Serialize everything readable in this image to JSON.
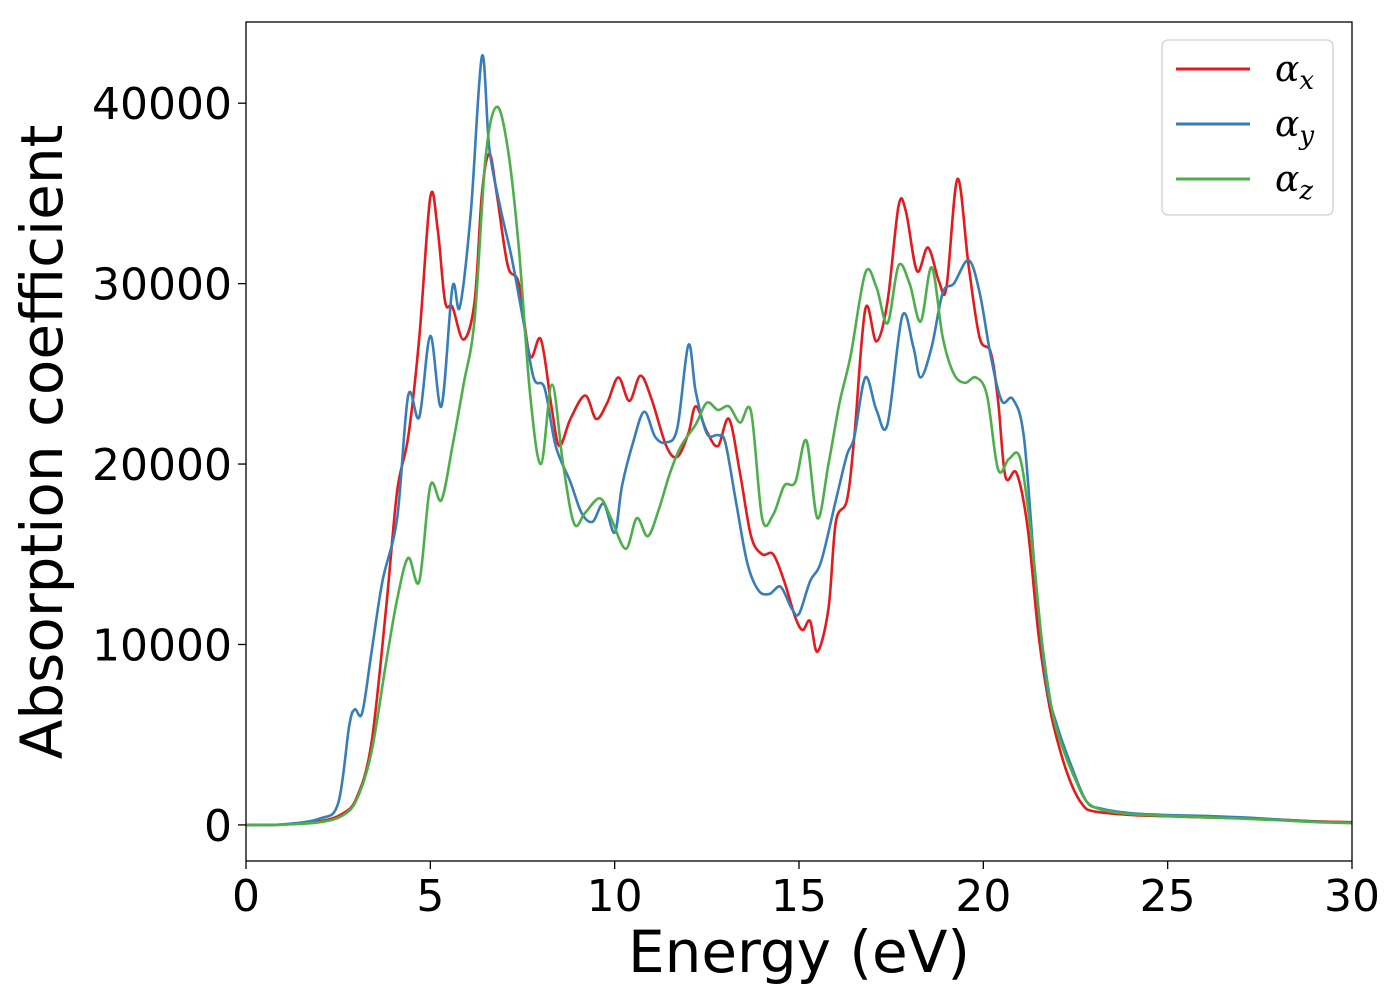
{
  "chart_data": {
    "type": "line",
    "title": "",
    "xlabel": "Energy (eV)",
    "ylabel": "Absorption coefficient",
    "xlim": [
      0,
      30
    ],
    "ylim": [
      -2000,
      44500
    ],
    "xticks": [
      0,
      5,
      10,
      15,
      20,
      25,
      30
    ],
    "yticks": [
      0,
      10000,
      20000,
      30000,
      40000
    ],
    "grid": false,
    "legend_position": "top-right",
    "series": [
      {
        "name": "α",
        "subscript": "x",
        "color": "#e41a1c",
        "points": [
          [
            0,
            0
          ],
          [
            1,
            20
          ],
          [
            2,
            200
          ],
          [
            2.6,
            600
          ],
          [
            3,
            1500
          ],
          [
            3.4,
            4500
          ],
          [
            3.8,
            12000
          ],
          [
            4.1,
            18500
          ],
          [
            4.4,
            21500
          ],
          [
            4.7,
            27000
          ],
          [
            5,
            34800
          ],
          [
            5.2,
            33000
          ],
          [
            5.4,
            29000
          ],
          [
            5.6,
            28700
          ],
          [
            5.9,
            26900
          ],
          [
            6.2,
            29000
          ],
          [
            6.4,
            35000
          ],
          [
            6.6,
            37200
          ],
          [
            6.8,
            35000
          ],
          [
            7.1,
            31000
          ],
          [
            7.4,
            30000
          ],
          [
            7.7,
            26000
          ],
          [
            8,
            26900
          ],
          [
            8.3,
            23000
          ],
          [
            8.5,
            21000
          ],
          [
            8.8,
            22500
          ],
          [
            9.2,
            23800
          ],
          [
            9.5,
            22500
          ],
          [
            9.8,
            23400
          ],
          [
            10.1,
            24800
          ],
          [
            10.4,
            23500
          ],
          [
            10.7,
            24900
          ],
          [
            11,
            23600
          ],
          [
            11.4,
            21000
          ],
          [
            11.7,
            20400
          ],
          [
            12,
            21700
          ],
          [
            12.2,
            23200
          ],
          [
            12.5,
            21800
          ],
          [
            12.8,
            21000
          ],
          [
            13.1,
            22500
          ],
          [
            13.4,
            19500
          ],
          [
            13.7,
            16000
          ],
          [
            14,
            15000
          ],
          [
            14.3,
            15000
          ],
          [
            14.6,
            13500
          ],
          [
            14.9,
            11500
          ],
          [
            15.1,
            10800
          ],
          [
            15.3,
            11300
          ],
          [
            15.5,
            9600
          ],
          [
            15.8,
            12000
          ],
          [
            16,
            16800
          ],
          [
            16.3,
            18000
          ],
          [
            16.5,
            21500
          ],
          [
            16.8,
            28600
          ],
          [
            17.1,
            26800
          ],
          [
            17.4,
            29000
          ],
          [
            17.7,
            34300
          ],
          [
            17.9,
            34000
          ],
          [
            18.2,
            30700
          ],
          [
            18.5,
            32000
          ],
          [
            18.8,
            30100
          ],
          [
            19.0,
            29800
          ],
          [
            19.3,
            35800
          ],
          [
            19.6,
            31000
          ],
          [
            19.9,
            27000
          ],
          [
            20.2,
            26200
          ],
          [
            20.4,
            23500
          ],
          [
            20.6,
            19300
          ],
          [
            20.9,
            19500
          ],
          [
            21.2,
            16500
          ],
          [
            21.5,
            10500
          ],
          [
            21.8,
            6500
          ],
          [
            22.1,
            4000
          ],
          [
            22.4,
            2200
          ],
          [
            22.7,
            1100
          ],
          [
            23,
            750
          ],
          [
            24,
            550
          ],
          [
            25,
            480
          ],
          [
            26,
            420
          ],
          [
            27,
            380
          ],
          [
            28,
            300
          ],
          [
            29,
            200
          ],
          [
            30,
            150
          ]
        ]
      },
      {
        "name": "α",
        "subscript": "y",
        "color": "#377eb8",
        "points": [
          [
            0,
            0
          ],
          [
            1,
            30
          ],
          [
            2,
            350
          ],
          [
            2.5,
            1200
          ],
          [
            2.8,
            5500
          ],
          [
            2.95,
            6400
          ],
          [
            3.15,
            6200
          ],
          [
            3.4,
            9500
          ],
          [
            3.7,
            13500
          ],
          [
            4.1,
            17000
          ],
          [
            4.4,
            23800
          ],
          [
            4.7,
            22600
          ],
          [
            5,
            27100
          ],
          [
            5.3,
            23200
          ],
          [
            5.6,
            29800
          ],
          [
            5.8,
            28700
          ],
          [
            6.1,
            34000
          ],
          [
            6.4,
            42600
          ],
          [
            6.6,
            37500
          ],
          [
            6.9,
            34200
          ],
          [
            7.2,
            31500
          ],
          [
            7.5,
            28200
          ],
          [
            7.8,
            24800
          ],
          [
            8.1,
            24200
          ],
          [
            8.4,
            21000
          ],
          [
            8.8,
            19000
          ],
          [
            9.1,
            17300
          ],
          [
            9.4,
            16800
          ],
          [
            9.7,
            17800
          ],
          [
            10,
            16200
          ],
          [
            10.2,
            18800
          ],
          [
            10.5,
            21200
          ],
          [
            10.8,
            22900
          ],
          [
            11.1,
            21500
          ],
          [
            11.4,
            21200
          ],
          [
            11.7,
            22000
          ],
          [
            12,
            26600
          ],
          [
            12.2,
            24000
          ],
          [
            12.5,
            21700
          ],
          [
            12.8,
            21600
          ],
          [
            13,
            21200
          ],
          [
            13.3,
            17800
          ],
          [
            13.6,
            14500
          ],
          [
            13.9,
            13000
          ],
          [
            14.2,
            12800
          ],
          [
            14.5,
            13200
          ],
          [
            14.8,
            12000
          ],
          [
            15.0,
            11700
          ],
          [
            15.3,
            13500
          ],
          [
            15.6,
            14600
          ],
          [
            16,
            18000
          ],
          [
            16.3,
            20500
          ],
          [
            16.5,
            21500
          ],
          [
            16.8,
            24800
          ],
          [
            17.1,
            23000
          ],
          [
            17.4,
            22200
          ],
          [
            17.8,
            28200
          ],
          [
            18.1,
            26500
          ],
          [
            18.3,
            24800
          ],
          [
            18.6,
            26500
          ],
          [
            18.9,
            29500
          ],
          [
            19.2,
            30000
          ],
          [
            19.6,
            31300
          ],
          [
            19.9,
            29500
          ],
          [
            20.2,
            26000
          ],
          [
            20.5,
            23500
          ],
          [
            20.8,
            23600
          ],
          [
            21.1,
            21500
          ],
          [
            21.4,
            14000
          ],
          [
            21.7,
            8000
          ],
          [
            22,
            5500
          ],
          [
            22.4,
            3200
          ],
          [
            22.8,
            1300
          ],
          [
            23.2,
            900
          ],
          [
            24,
            650
          ],
          [
            25,
            550
          ],
          [
            26,
            500
          ],
          [
            27,
            420
          ],
          [
            28,
            300
          ],
          [
            29,
            180
          ],
          [
            30,
            120
          ]
        ]
      },
      {
        "name": "α",
        "subscript": "z",
        "color": "#4daf4a",
        "points": [
          [
            0,
            0
          ],
          [
            1,
            15
          ],
          [
            2,
            150
          ],
          [
            2.6,
            500
          ],
          [
            3,
            1400
          ],
          [
            3.4,
            4000
          ],
          [
            3.8,
            9000
          ],
          [
            4.1,
            12500
          ],
          [
            4.4,
            14800
          ],
          [
            4.7,
            13500
          ],
          [
            5,
            18800
          ],
          [
            5.3,
            18000
          ],
          [
            5.6,
            21000
          ],
          [
            5.9,
            24400
          ],
          [
            6.2,
            28000
          ],
          [
            6.5,
            37000
          ],
          [
            6.8,
            39800
          ],
          [
            7.1,
            37500
          ],
          [
            7.4,
            32000
          ],
          [
            7.7,
            24000
          ],
          [
            8,
            20000
          ],
          [
            8.3,
            24400
          ],
          [
            8.6,
            20000
          ],
          [
            8.9,
            16700
          ],
          [
            9.2,
            17300
          ],
          [
            9.6,
            18100
          ],
          [
            9.9,
            17000
          ],
          [
            10.3,
            15300
          ],
          [
            10.6,
            17000
          ],
          [
            10.9,
            16000
          ],
          [
            11.2,
            17500
          ],
          [
            11.5,
            19500
          ],
          [
            11.8,
            21000
          ],
          [
            12.2,
            22200
          ],
          [
            12.5,
            23400
          ],
          [
            12.8,
            23000
          ],
          [
            13.1,
            23200
          ],
          [
            13.4,
            22300
          ],
          [
            13.7,
            22900
          ],
          [
            14,
            17000
          ],
          [
            14.3,
            17200
          ],
          [
            14.6,
            18800
          ],
          [
            14.9,
            19000
          ],
          [
            15.2,
            21300
          ],
          [
            15.5,
            17000
          ],
          [
            15.8,
            20000
          ],
          [
            16.1,
            23400
          ],
          [
            16.4,
            26000
          ],
          [
            16.8,
            30600
          ],
          [
            17.1,
            29800
          ],
          [
            17.4,
            27800
          ],
          [
            17.7,
            31000
          ],
          [
            18.0,
            30000
          ],
          [
            18.3,
            27900
          ],
          [
            18.6,
            30900
          ],
          [
            18.9,
            27000
          ],
          [
            19.2,
            25000
          ],
          [
            19.5,
            24500
          ],
          [
            19.8,
            24800
          ],
          [
            20.1,
            23800
          ],
          [
            20.4,
            19700
          ],
          [
            20.7,
            20300
          ],
          [
            21,
            20300
          ],
          [
            21.3,
            16000
          ],
          [
            21.6,
            10000
          ],
          [
            21.9,
            6000
          ],
          [
            22.2,
            4000
          ],
          [
            22.5,
            2500
          ],
          [
            22.8,
            1300
          ],
          [
            23.2,
            850
          ],
          [
            24,
            600
          ],
          [
            25,
            500
          ],
          [
            26,
            420
          ],
          [
            27,
            350
          ],
          [
            28,
            260
          ],
          [
            29,
            160
          ],
          [
            30,
            100
          ]
        ]
      }
    ]
  }
}
